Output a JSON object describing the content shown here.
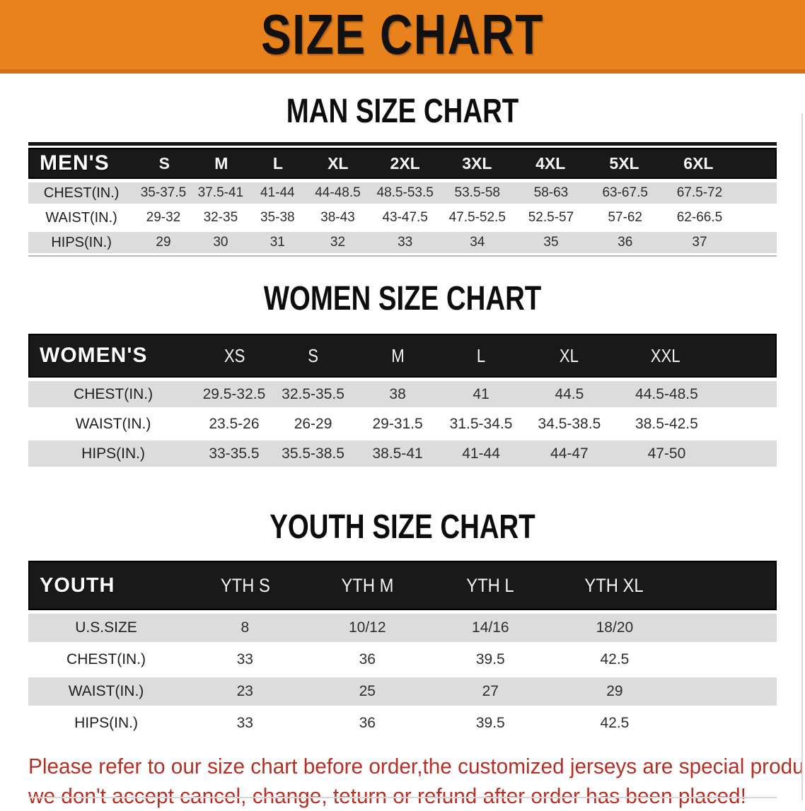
{
  "banner": {
    "title": "SIZE CHART"
  },
  "colors": {
    "banner_orange": "#E8821C",
    "header_black": "#191919",
    "row_gray": "#DCDCDC",
    "disclaimer_red": "#B23127"
  },
  "sections": {
    "men": {
      "heading": "MAN SIZE CHART",
      "group_label": "MEN'S",
      "sizes": [
        "S",
        "M",
        "L",
        "XL",
        "2XL",
        "3XL",
        "4XL",
        "5XL",
        "6XL"
      ],
      "rows": [
        {
          "label": "CHEST(IN.)",
          "values": [
            "35-37.5",
            "37.5-41",
            "41-44",
            "44-48.5",
            "48.5-53.5",
            "53.5-58",
            "58-63",
            "63-67.5",
            "67.5-72"
          ]
        },
        {
          "label": "WAIST(IN.)",
          "values": [
            "29-32",
            "32-35",
            "35-38",
            "38-43",
            "43-47.5",
            "47.5-52.5",
            "52.5-57",
            "57-62",
            "62-66.5"
          ]
        },
        {
          "label": "HIPS(IN.)",
          "values": [
            "29",
            "30",
            "31",
            "32",
            "33",
            "34",
            "35",
            "36",
            "37"
          ]
        }
      ]
    },
    "women": {
      "heading": "WOMEN SIZE CHART",
      "group_label": "WOMEN'S",
      "sizes": [
        "XS",
        "S",
        "M",
        "L",
        "XL",
        "XXL"
      ],
      "rows": [
        {
          "label": "CHEST(IN.)",
          "values": [
            "29.5-32.5",
            "32.5-35.5",
            "38",
            "41",
            "44.5",
            "44.5-48.5"
          ]
        },
        {
          "label": "WAIST(IN.)",
          "values": [
            "23.5-26",
            "26-29",
            "29-31.5",
            "31.5-34.5",
            "34.5-38.5",
            "38.5-42.5"
          ]
        },
        {
          "label": "HIPS(IN.)",
          "values": [
            "33-35.5",
            "35.5-38.5",
            "38.5-41",
            "41-44",
            "44-47",
            "47-50"
          ]
        }
      ]
    },
    "youth": {
      "heading": "YOUTH SIZE CHART",
      "group_label": "YOUTH",
      "sizes": [
        "YTH S",
        "YTH M",
        "YTH L",
        "YTH XL"
      ],
      "rows": [
        {
          "label": "U.S.SIZE",
          "values": [
            "8",
            "10/12",
            "14/16",
            "18/20"
          ]
        },
        {
          "label": "CHEST(IN.)",
          "values": [
            "33",
            "36",
            "39.5",
            "42.5"
          ]
        },
        {
          "label": "WAIST(IN.)",
          "values": [
            "23",
            "25",
            "27",
            "29"
          ]
        },
        {
          "label": "HIPS(IN.)",
          "values": [
            "33",
            "36",
            "39.5",
            "42.5"
          ]
        }
      ]
    }
  },
  "disclaimer": {
    "line1": "Please refer to our size chart before order,the customized jerseys are special products,",
    "line2": "we don't accept cancel, change, teturn or refund after order has been placed!"
  }
}
